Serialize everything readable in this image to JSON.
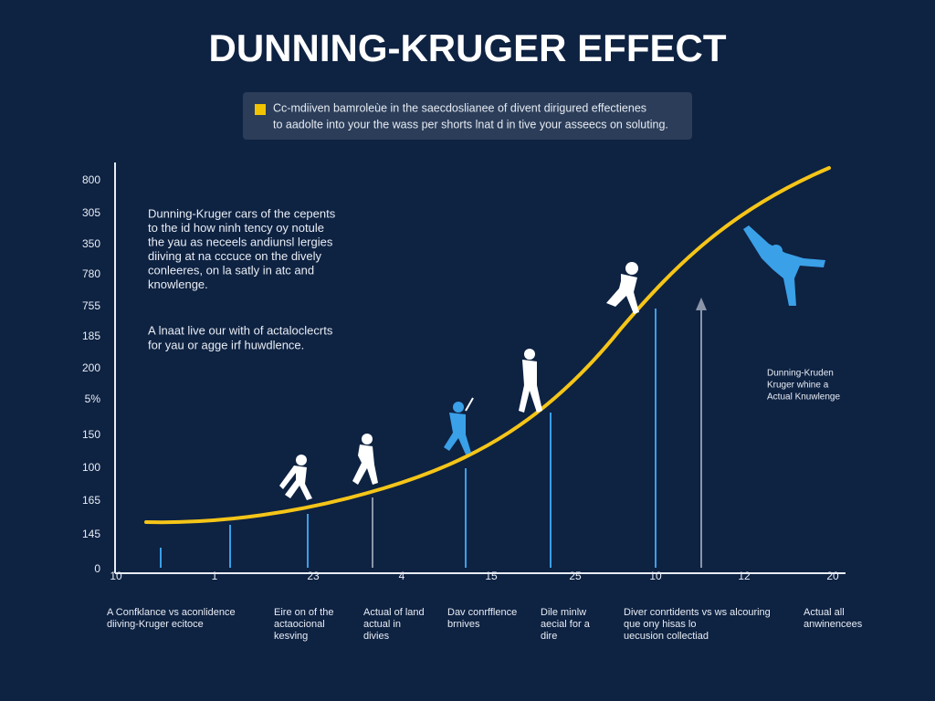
{
  "title": "DUNNING-KRUGER EFFECT",
  "note": [
    "Cc-mdiiven bamroleùe in the saecdoslianee of divent dirigured effectienes",
    "to aadolte into your the wass per shorts lnat d in tive your asseecs on soluting."
  ],
  "y_axis_labels": [
    "800",
    "305",
    "350",
    "780",
    "755",
    "185",
    "200",
    "5%",
    "150",
    "100",
    "165",
    "145",
    "0"
  ],
  "x_axis_labels": [
    "10",
    "1",
    "23",
    "4",
    "15",
    "25",
    "10",
    "12",
    "20"
  ],
  "annotation_left": [
    "Dunning-Kruger cars of the cepents",
    "to the id how ninh tency oy notule",
    "the yau as neceels andiunsl lergies",
    "diiving at na cccuce on the dively",
    "conleeres, on la satly in atc and",
    "knowlenge."
  ],
  "annotation_left_2": [
    "A lnaat live our with of actaloclecrts",
    "for yau or agge irf huwdlence."
  ],
  "annotation_right": [
    "Dunning-Kruden",
    "Kruger whine a",
    "Actual Knuwlenge"
  ],
  "captions": [
    [
      "A Confklance vs aconlidence",
      "diiving-Kruger ecitoce"
    ],
    [
      "Eire on of the",
      "actaocional",
      "kesving"
    ],
    [
      "Actual of land",
      "actual in",
      "divies"
    ],
    [
      "Dav conrfflence",
      "brnives"
    ],
    [
      "Dile minlw",
      "aecial for a",
      "dire"
    ],
    [
      "Diver conrtidents vs ws alcouring",
      "que ony hisas lo",
      "uecusion collectiad"
    ],
    [
      "Actual all",
      "anwinencees"
    ]
  ]
}
